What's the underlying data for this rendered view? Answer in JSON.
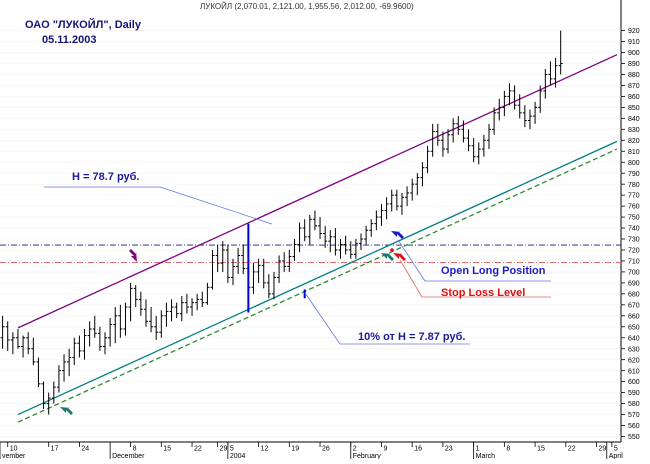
{
  "chart_data": {
    "type": "ohlc",
    "header": "ЛУКОЙЛ (2,070.01, 2,121.00, 1,955.56, 2,012.00, -69.9600)",
    "title_line1": "ОАО \"ЛУКОЙЛ\", Daily",
    "title_line2": "05.11.2003",
    "y_axis": {
      "min": 545,
      "max": 925,
      "ticks": [
        550,
        560,
        570,
        580,
        590,
        600,
        610,
        620,
        630,
        640,
        650,
        660,
        670,
        680,
        690,
        700,
        710,
        720,
        730,
        740,
        750,
        760,
        770,
        780,
        790,
        800,
        810,
        820,
        830,
        840,
        850,
        860,
        870,
        880,
        890,
        900,
        910,
        920
      ]
    },
    "x_axis": {
      "day_labels": [
        {
          "i": 1,
          "t": "10"
        },
        {
          "i": 9,
          "t": "17"
        },
        {
          "i": 15,
          "t": "24"
        },
        {
          "i": 25,
          "t": "8"
        },
        {
          "i": 31,
          "t": "15"
        },
        {
          "i": 37,
          "t": "22"
        },
        {
          "i": 42,
          "t": "29"
        },
        {
          "i": 44,
          "t": "5"
        },
        {
          "i": 50,
          "t": "12"
        },
        {
          "i": 56,
          "t": "19"
        },
        {
          "i": 62,
          "t": "26"
        },
        {
          "i": 68,
          "t": "2"
        },
        {
          "i": 74,
          "t": "9"
        },
        {
          "i": 80,
          "t": "16"
        },
        {
          "i": 86,
          "t": "23"
        },
        {
          "i": 92,
          "t": "1"
        },
        {
          "i": 98,
          "t": "8"
        },
        {
          "i": 104,
          "t": "15"
        },
        {
          "i": 110,
          "t": "22"
        },
        {
          "i": 116,
          "t": "29"
        },
        {
          "i": 119,
          "t": "5"
        }
      ],
      "month_labels": [
        {
          "i": -2,
          "t": "vember"
        },
        {
          "i": 21,
          "t": "December"
        },
        {
          "i": 44,
          "t": "2004"
        },
        {
          "i": 68,
          "t": "February"
        },
        {
          "i": 92,
          "t": "March"
        },
        {
          "i": 118,
          "t": "April"
        }
      ]
    },
    "series": [
      {
        "o": 640,
        "h": 660,
        "l": 630,
        "c": 650
      },
      {
        "o": 650,
        "h": 655,
        "l": 628,
        "c": 638
      },
      {
        "o": 638,
        "h": 645,
        "l": 625,
        "c": 640
      },
      {
        "o": 640,
        "h": 648,
        "l": 630,
        "c": 632
      },
      {
        "o": 632,
        "h": 642,
        "l": 622,
        "c": 640
      },
      {
        "o": 640,
        "h": 645,
        "l": 625,
        "c": 630
      },
      {
        "o": 630,
        "h": 640,
        "l": 615,
        "c": 618
      },
      {
        "o": 618,
        "h": 622,
        "l": 595,
        "c": 598
      },
      {
        "o": 598,
        "h": 600,
        "l": 575,
        "c": 580
      },
      {
        "o": 580,
        "h": 590,
        "l": 570,
        "c": 585
      },
      {
        "o": 585,
        "h": 600,
        "l": 580,
        "c": 595
      },
      {
        "o": 595,
        "h": 615,
        "l": 590,
        "c": 610
      },
      {
        "o": 610,
        "h": 625,
        "l": 600,
        "c": 618
      },
      {
        "o": 618,
        "h": 630,
        "l": 605,
        "c": 622
      },
      {
        "o": 622,
        "h": 640,
        "l": 615,
        "c": 635
      },
      {
        "o": 635,
        "h": 642,
        "l": 622,
        "c": 628
      },
      {
        "o": 628,
        "h": 648,
        "l": 620,
        "c": 642
      },
      {
        "o": 642,
        "h": 655,
        "l": 632,
        "c": 648
      },
      {
        "o": 648,
        "h": 660,
        "l": 640,
        "c": 644
      },
      {
        "o": 644,
        "h": 650,
        "l": 628,
        "c": 632
      },
      {
        "o": 632,
        "h": 645,
        "l": 625,
        "c": 640
      },
      {
        "o": 640,
        "h": 658,
        "l": 632,
        "c": 652
      },
      {
        "o": 652,
        "h": 668,
        "l": 635,
        "c": 660
      },
      {
        "o": 660,
        "h": 670,
        "l": 640,
        "c": 648
      },
      {
        "o": 648,
        "h": 672,
        "l": 642,
        "c": 668
      },
      {
        "o": 668,
        "h": 690,
        "l": 655,
        "c": 685
      },
      {
        "o": 685,
        "h": 688,
        "l": 668,
        "c": 675
      },
      {
        "o": 675,
        "h": 682,
        "l": 660,
        "c": 666
      },
      {
        "o": 666,
        "h": 675,
        "l": 650,
        "c": 655
      },
      {
        "o": 655,
        "h": 668,
        "l": 645,
        "c": 650
      },
      {
        "o": 650,
        "h": 660,
        "l": 638,
        "c": 645
      },
      {
        "o": 645,
        "h": 665,
        "l": 640,
        "c": 660
      },
      {
        "o": 660,
        "h": 672,
        "l": 650,
        "c": 664
      },
      {
        "o": 664,
        "h": 675,
        "l": 655,
        "c": 668
      },
      {
        "o": 668,
        "h": 672,
        "l": 658,
        "c": 662
      },
      {
        "o": 662,
        "h": 678,
        "l": 655,
        "c": 672
      },
      {
        "o": 672,
        "h": 680,
        "l": 662,
        "c": 668
      },
      {
        "o": 668,
        "h": 676,
        "l": 660,
        "c": 672
      },
      {
        "o": 672,
        "h": 680,
        "l": 665,
        "c": 675
      },
      {
        "o": 675,
        "h": 682,
        "l": 668,
        "c": 672
      },
      {
        "o": 672,
        "h": 690,
        "l": 670,
        "c": 686
      },
      {
        "o": 686,
        "h": 720,
        "l": 684,
        "c": 715
      },
      {
        "o": 715,
        "h": 725,
        "l": 700,
        "c": 708
      },
      {
        "o": 708,
        "h": 728,
        "l": 700,
        "c": 720
      },
      {
        "o": 720,
        "h": 725,
        "l": 690,
        "c": 695
      },
      {
        "o": 695,
        "h": 712,
        "l": 688,
        "c": 705
      },
      {
        "o": 705,
        "h": 722,
        "l": 698,
        "c": 715
      },
      {
        "o": 715,
        "h": 725,
        "l": 698,
        "c": 703
      },
      {
        "o": 703,
        "h": 712,
        "l": 680,
        "c": 686
      },
      {
        "o": 686,
        "h": 708,
        "l": 680,
        "c": 700
      },
      {
        "o": 700,
        "h": 712,
        "l": 690,
        "c": 706
      },
      {
        "o": 706,
        "h": 712,
        "l": 685,
        "c": 690
      },
      {
        "o": 690,
        "h": 698,
        "l": 676,
        "c": 680
      },
      {
        "o": 680,
        "h": 700,
        "l": 675,
        "c": 695
      },
      {
        "o": 695,
        "h": 715,
        "l": 690,
        "c": 710
      },
      {
        "o": 710,
        "h": 718,
        "l": 700,
        "c": 705
      },
      {
        "o": 705,
        "h": 720,
        "l": 700,
        "c": 714
      },
      {
        "o": 714,
        "h": 730,
        "l": 710,
        "c": 725
      },
      {
        "o": 725,
        "h": 745,
        "l": 718,
        "c": 740
      },
      {
        "o": 740,
        "h": 748,
        "l": 728,
        "c": 732
      },
      {
        "o": 732,
        "h": 752,
        "l": 725,
        "c": 748
      },
      {
        "o": 748,
        "h": 756,
        "l": 738,
        "c": 742
      },
      {
        "o": 742,
        "h": 750,
        "l": 730,
        "c": 735
      },
      {
        "o": 735,
        "h": 742,
        "l": 722,
        "c": 728
      },
      {
        "o": 728,
        "h": 738,
        "l": 718,
        "c": 732
      },
      {
        "o": 732,
        "h": 740,
        "l": 715,
        "c": 720
      },
      {
        "o": 720,
        "h": 730,
        "l": 712,
        "c": 725
      },
      {
        "o": 725,
        "h": 733,
        "l": 716,
        "c": 720
      },
      {
        "o": 720,
        "h": 728,
        "l": 712,
        "c": 716
      },
      {
        "o": 716,
        "h": 730,
        "l": 712,
        "c": 726
      },
      {
        "o": 726,
        "h": 735,
        "l": 720,
        "c": 730
      },
      {
        "o": 730,
        "h": 742,
        "l": 725,
        "c": 738
      },
      {
        "o": 738,
        "h": 748,
        "l": 732,
        "c": 744
      },
      {
        "o": 744,
        "h": 756,
        "l": 738,
        "c": 750
      },
      {
        "o": 750,
        "h": 762,
        "l": 742,
        "c": 756
      },
      {
        "o": 756,
        "h": 768,
        "l": 748,
        "c": 762
      },
      {
        "o": 762,
        "h": 775,
        "l": 755,
        "c": 770
      },
      {
        "o": 770,
        "h": 775,
        "l": 756,
        "c": 760
      },
      {
        "o": 760,
        "h": 772,
        "l": 752,
        "c": 768
      },
      {
        "o": 768,
        "h": 778,
        "l": 760,
        "c": 772
      },
      {
        "o": 772,
        "h": 785,
        "l": 765,
        "c": 780
      },
      {
        "o": 780,
        "h": 790,
        "l": 770,
        "c": 786
      },
      {
        "o": 786,
        "h": 800,
        "l": 778,
        "c": 795
      },
      {
        "o": 795,
        "h": 815,
        "l": 790,
        "c": 810
      },
      {
        "o": 810,
        "h": 835,
        "l": 805,
        "c": 828
      },
      {
        "o": 828,
        "h": 835,
        "l": 815,
        "c": 820
      },
      {
        "o": 820,
        "h": 828,
        "l": 805,
        "c": 812
      },
      {
        "o": 812,
        "h": 830,
        "l": 808,
        "c": 825
      },
      {
        "o": 825,
        "h": 840,
        "l": 818,
        "c": 835
      },
      {
        "o": 835,
        "h": 842,
        "l": 825,
        "c": 830
      },
      {
        "o": 830,
        "h": 838,
        "l": 818,
        "c": 822
      },
      {
        "o": 822,
        "h": 830,
        "l": 810,
        "c": 815
      },
      {
        "o": 815,
        "h": 822,
        "l": 800,
        "c": 805
      },
      {
        "o": 805,
        "h": 818,
        "l": 798,
        "c": 812
      },
      {
        "o": 812,
        "h": 825,
        "l": 805,
        "c": 820
      },
      {
        "o": 820,
        "h": 835,
        "l": 812,
        "c": 830
      },
      {
        "o": 830,
        "h": 850,
        "l": 825,
        "c": 845
      },
      {
        "o": 845,
        "h": 858,
        "l": 838,
        "c": 850
      },
      {
        "o": 850,
        "h": 865,
        "l": 842,
        "c": 860
      },
      {
        "o": 860,
        "h": 872,
        "l": 852,
        "c": 865
      },
      {
        "o": 865,
        "h": 870,
        "l": 848,
        "c": 852
      },
      {
        "o": 852,
        "h": 862,
        "l": 840,
        "c": 845
      },
      {
        "o": 845,
        "h": 852,
        "l": 832,
        "c": 838
      },
      {
        "o": 838,
        "h": 848,
        "l": 830,
        "c": 842
      },
      {
        "o": 842,
        "h": 855,
        "l": 835,
        "c": 850
      },
      {
        "o": 850,
        "h": 870,
        "l": 845,
        "c": 865
      },
      {
        "o": 865,
        "h": 885,
        "l": 858,
        "c": 880
      },
      {
        "o": 880,
        "h": 892,
        "l": 870,
        "c": 876
      },
      {
        "o": 876,
        "h": 895,
        "l": 868,
        "c": 888
      },
      {
        "o": 888,
        "h": 920,
        "l": 880,
        "c": 890
      }
    ],
    "channel": {
      "upper": {
        "i0": 3,
        "v0": 649,
        "i1": 120,
        "v1": 898,
        "color": "#800080"
      },
      "lower": {
        "i0": 3,
        "v0": 570,
        "i1": 120,
        "v1": 819,
        "color": "#008080"
      },
      "stop": {
        "i0": 3,
        "v0": 563,
        "i1": 120,
        "v1": 812,
        "color": "#2e8b2e"
      }
    },
    "horizontals": [
      {
        "v": 724.5,
        "color": "#1a1a80",
        "style": "dashdot"
      },
      {
        "v": 708.5,
        "color": "#d04040",
        "style": "dashdot"
      }
    ],
    "markers": {
      "height_bar": {
        "i": 48,
        "lo": 663,
        "hi": 744,
        "color": "#0000cc"
      },
      "stop_bar": {
        "i": 59,
        "lo": 676,
        "hi": 684,
        "color": "#0000cc"
      }
    },
    "annotations": [
      {
        "id": "h",
        "text": "H = 78.7 руб.",
        "color": "#1a1a9a"
      },
      {
        "id": "pct",
        "text": "10% от H = 7.87 руб.",
        "color": "#1a1a9a"
      },
      {
        "id": "long",
        "text": "Open Long Position",
        "color": "#1a1acc"
      },
      {
        "id": "stop",
        "text": "Stop Loss Level",
        "color": "#e01010"
      }
    ]
  }
}
